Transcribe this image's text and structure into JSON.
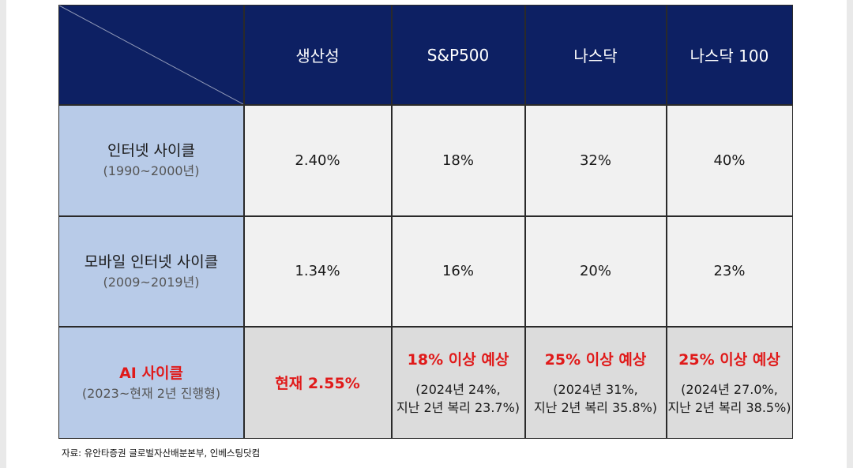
{
  "columns": [
    "생산성",
    "S&P500",
    "나스닥",
    "나스닥 100"
  ],
  "rows": [
    {
      "title": "인터넷 사이클",
      "period": "(1990~2000년)",
      "values": [
        "2.40%",
        "18%",
        "32%",
        "40%"
      ]
    },
    {
      "title": "모바일 인터넷 사이클",
      "period": "(2009~2019년)",
      "values": [
        "1.34%",
        "16%",
        "20%",
        "23%"
      ]
    }
  ],
  "ai_row": {
    "title": "AI 사이클",
    "period": "(2023~현재 2년 진행형)",
    "productivity": "현재 2.55%",
    "cells": [
      {
        "main": "18% 이상 예상",
        "detail1": "(2024년 24%,",
        "detail2": "지난 2년 복리 23.7%)"
      },
      {
        "main": "25% 이상 예상",
        "detail1": "(2024년 31%,",
        "detail2": "지난 2년 복리 35.8%)"
      },
      {
        "main": "25% 이상 예상",
        "detail1": "(2024년 27.0%,",
        "detail2": "지난 2년 복리 38.5%)"
      }
    ]
  },
  "colors": {
    "header_bg": "#0d2063",
    "row_header_bg": "#b8cbe8",
    "highlight_red": "#e01a1a",
    "ai_row_bg": "#dcdcdc"
  },
  "source": "자료: 유안타증권 글로벌자산배분본부, 인베스팅닷컴"
}
